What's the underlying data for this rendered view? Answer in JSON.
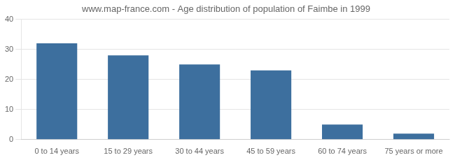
{
  "chart_data": {
    "type": "bar",
    "title": "www.map-france.com - Age distribution of population of Faimbe in 1999",
    "categories": [
      "0 to 14 years",
      "15 to 29 years",
      "30 to 44 years",
      "45 to 59 years",
      "60 to 74 years",
      "75 years or more"
    ],
    "values": [
      32,
      28,
      25,
      23,
      5,
      2
    ],
    "color": "#3d6f9e",
    "ylim": [
      0,
      40
    ],
    "yticks": [
      0,
      10,
      20,
      30,
      40
    ],
    "grid": true
  }
}
